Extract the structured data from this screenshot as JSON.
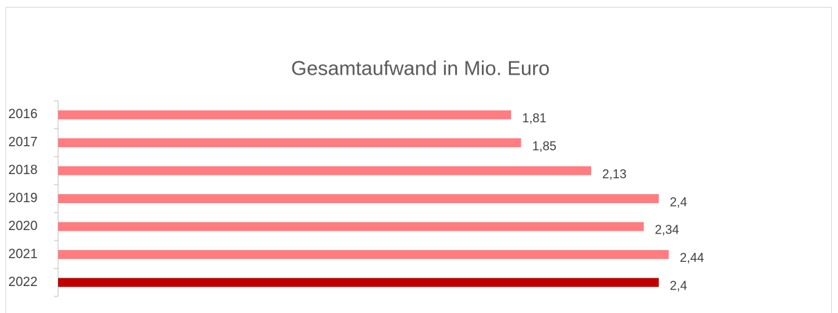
{
  "chart_data": {
    "type": "bar",
    "orientation": "horizontal",
    "title": "Gesamtaufwand in Mio. Euro",
    "categories": [
      "2016",
      "2017",
      "2018",
      "2019",
      "2020",
      "2021",
      "2022"
    ],
    "values": [
      1.81,
      1.85,
      2.13,
      2.4,
      2.34,
      2.44,
      2.4
    ],
    "value_labels": [
      "1,81",
      "1,85",
      "2,13",
      "2,4",
      "2,34",
      "2,44",
      "2,4"
    ],
    "colors": [
      "#ff7c80",
      "#ff7c80",
      "#ff7c80",
      "#ff7c80",
      "#ff7c80",
      "#ff7c80",
      "#c00000"
    ],
    "xlim": [
      0,
      3
    ]
  }
}
